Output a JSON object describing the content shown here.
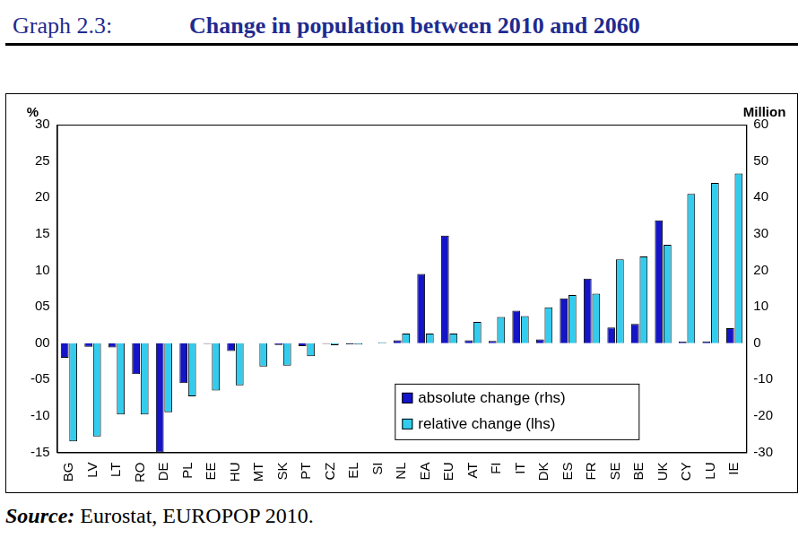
{
  "chart_data": {
    "type": "bar",
    "figure_label": "Graph 2.3:",
    "title": "Change in population between 2010 and 2060",
    "source_label": "Source:",
    "source": "Eurostat, EUROPOP 2010.",
    "ylabel": "%",
    "y2label": "Million",
    "categories": [
      "BG",
      "LV",
      "LT",
      "RO",
      "DE",
      "PL",
      "EE",
      "HU",
      "MT",
      "SK",
      "PT",
      "CZ",
      "EL",
      "SI",
      "NL",
      "EA",
      "EU",
      "AT",
      "FI",
      "IT",
      "DK",
      "ES",
      "FR",
      "SE",
      "BE",
      "UK",
      "CY",
      "LU",
      "IE"
    ],
    "series": [
      {
        "name": "absolute change (rhs)",
        "color": "#1414c8",
        "axis": "y2",
        "values": [
          -4,
          -1,
          -1.2,
          -8.5,
          -30,
          -11,
          -0.2,
          -2.2,
          0,
          -0.5,
          -0.8,
          -0.2,
          -0.3,
          0,
          0.8,
          19,
          29.5,
          0.8,
          0.6,
          8.9,
          1,
          12.3,
          17.7,
          4.3,
          5.3,
          33.7,
          0.4,
          0.5,
          4.1
        ]
      },
      {
        "name": "relative change (lhs)",
        "color": "#33ccee",
        "axis": "y",
        "values": [
          -13.5,
          -12.8,
          -9.8,
          -9.8,
          -9.5,
          -7.3,
          -6.5,
          -5.8,
          -3.2,
          -3.1,
          -1.8,
          -0.3,
          -0.2,
          0.1,
          1.3,
          1.3,
          1.3,
          2.9,
          3.6,
          3.7,
          4.9,
          6.6,
          6.8,
          11.5,
          11.9,
          13.5,
          20.5,
          22.0,
          23.3
        ]
      }
    ],
    "ylim": [
      -15,
      30
    ],
    "yticks": [
      -15,
      -10,
      {
        "value": -5,
        "label": "-05"
      },
      {
        "value": 0,
        "label": "00"
      },
      {
        "value": 5,
        "label": "05"
      },
      10,
      15,
      20,
      25,
      30
    ],
    "y2lim": [
      -30,
      60
    ],
    "y2ticks": [
      -30,
      -20,
      -10,
      0,
      10,
      20,
      30,
      40,
      50,
      60
    ],
    "grid": false,
    "legend": "lower center"
  }
}
